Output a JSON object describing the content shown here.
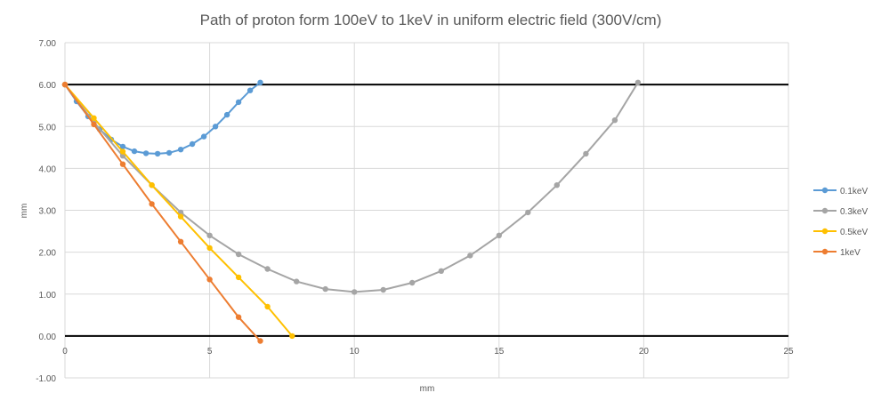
{
  "chart_data": {
    "type": "scatter",
    "title": "Path of proton form 100eV to 1keV in uniform electric field (300V/cm)",
    "xlabel": "mm",
    "ylabel": "mm",
    "xlim": [
      0,
      25
    ],
    "ylim": [
      -1,
      7
    ],
    "x_ticks": [
      0,
      5,
      10,
      15,
      20,
      25
    ],
    "x_tick_labels": [
      "0",
      "5",
      "10",
      "15",
      "20",
      "25"
    ],
    "y_ticks": [
      7,
      6,
      5,
      4,
      3,
      2,
      1,
      0,
      -1
    ],
    "y_tick_labels": [
      "7.00",
      "6.00",
      "5.00",
      "4.00",
      "3.00",
      "2.00",
      "1.00",
      "0.00",
      "-1.00"
    ],
    "grid": "horizontal",
    "legend_position": "right",
    "reference_lines": [
      {
        "x": [
          0,
          25
        ],
        "y": [
          6,
          6
        ],
        "color": "#000000"
      },
      {
        "x": [
          0,
          25
        ],
        "y": [
          0,
          0
        ],
        "color": "#000000"
      }
    ],
    "series": [
      {
        "name": "0.1keV",
        "color": "#5b9bd5",
        "points": [
          [
            0.0,
            6.0
          ],
          [
            0.4,
            5.6
          ],
          [
            0.8,
            5.24
          ],
          [
            1.2,
            4.93
          ],
          [
            1.6,
            4.69
          ],
          [
            2.0,
            4.52
          ],
          [
            2.4,
            4.41
          ],
          [
            2.8,
            4.36
          ],
          [
            3.2,
            4.35
          ],
          [
            3.6,
            4.37
          ],
          [
            4.0,
            4.45
          ],
          [
            4.4,
            4.58
          ],
          [
            4.8,
            4.76
          ],
          [
            5.2,
            5.0
          ],
          [
            5.6,
            5.28
          ],
          [
            6.0,
            5.58
          ],
          [
            6.4,
            5.86
          ],
          [
            6.75,
            6.05
          ]
        ]
      },
      {
        "name": "0.3keV",
        "color": "#a5a5a5",
        "points": [
          [
            0.0,
            6.0
          ],
          [
            1.0,
            5.1
          ],
          [
            2.0,
            4.3
          ],
          [
            3.0,
            3.6
          ],
          [
            4.0,
            2.95
          ],
          [
            5.0,
            2.4
          ],
          [
            6.0,
            1.95
          ],
          [
            7.0,
            1.6
          ],
          [
            8.0,
            1.3
          ],
          [
            9.0,
            1.12
          ],
          [
            10.0,
            1.05
          ],
          [
            11.0,
            1.1
          ],
          [
            12.0,
            1.27
          ],
          [
            13.0,
            1.55
          ],
          [
            14.0,
            1.92
          ],
          [
            15.0,
            2.4
          ],
          [
            16.0,
            2.95
          ],
          [
            17.0,
            3.6
          ],
          [
            18.0,
            4.35
          ],
          [
            19.0,
            5.15
          ],
          [
            19.8,
            6.05
          ]
        ]
      },
      {
        "name": "0.5keV",
        "color": "#ffc000",
        "points": [
          [
            0.0,
            6.0
          ],
          [
            1.0,
            5.2
          ],
          [
            2.0,
            4.4
          ],
          [
            3.0,
            3.6
          ],
          [
            4.0,
            2.85
          ],
          [
            5.0,
            2.1
          ],
          [
            6.0,
            1.4
          ],
          [
            7.0,
            0.7
          ],
          [
            7.85,
            0.0
          ]
        ]
      },
      {
        "name": "1keV",
        "color": "#ed7d31",
        "points": [
          [
            0.0,
            6.0
          ],
          [
            1.0,
            5.05
          ],
          [
            2.0,
            4.1
          ],
          [
            3.0,
            3.15
          ],
          [
            4.0,
            2.25
          ],
          [
            5.0,
            1.35
          ],
          [
            6.0,
            0.45
          ],
          [
            6.75,
            -0.12
          ]
        ]
      }
    ]
  }
}
